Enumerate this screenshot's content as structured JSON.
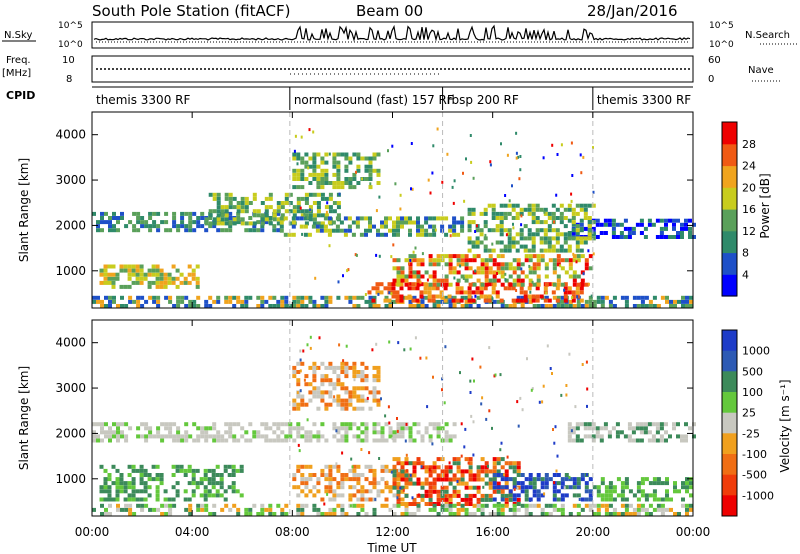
{
  "header": {
    "station": "South Pole Station (fitACF)",
    "beam": "Beam 00",
    "date": "28/Jan/2016"
  },
  "param_panels": {
    "nsky_label": "N.Sky",
    "nsky_ticks": [
      "10^5",
      "10^0"
    ],
    "nsearch_label": "N.Search",
    "nsearch_ticks": [
      "10^5",
      "10^0"
    ],
    "freq_label": "Freq.",
    "freq_unit": "[MHz]",
    "freq_ticks": [
      "10",
      "8"
    ],
    "nave_label": "Nave",
    "nave_ticks": [
      "60",
      "0"
    ],
    "cpid_label": "CPID"
  },
  "cpid_segments": [
    {
      "label": "themis 3300 RF",
      "start_hour": 0,
      "end_hour": 7.9
    },
    {
      "label": "normalsound (fast) 157 RF",
      "start_hour": 7.9,
      "end_hour": 14.0
    },
    {
      "label": "rbsp 200 RF",
      "start_hour": 14.0,
      "end_hour": 20.0
    },
    {
      "label": "themis 3300 RF",
      "start_hour": 20.0,
      "end_hour": 24.0
    }
  ],
  "x_axis": {
    "label": "Time UT",
    "ticks": [
      "00:00",
      "04:00",
      "08:00",
      "12:00",
      "16:00",
      "20:00",
      "00:00"
    ],
    "tick_hours": [
      0,
      4,
      8,
      12,
      16,
      20,
      24
    ]
  },
  "chart_data": [
    {
      "type": "heatmap",
      "name": "power",
      "ylabel": "Slant Range [km]",
      "yticks": [
        "1000",
        "2000",
        "3000",
        "4000"
      ],
      "ytick_values": [
        1000,
        2000,
        3000,
        4000
      ],
      "ylim": [
        180,
        4500
      ],
      "xlim_hours": [
        0,
        24
      ],
      "colorbar_label": "Power [dB]",
      "colorbar_ticks": [
        "4",
        "8",
        "12",
        "16",
        "20",
        "24",
        "28"
      ],
      "colorbar_colors": [
        "#0000ff",
        "#1e50c8",
        "#2f8a6a",
        "#5aa05a",
        "#c8cc1e",
        "#f0a41e",
        "#f05a14",
        "#ee0000"
      ],
      "bands": [
        {
          "h0": 0.0,
          "h1": 7.5,
          "r0": 1850,
          "r1": 2250,
          "cls": [
            1,
            2,
            3
          ]
        },
        {
          "h0": 4.5,
          "h1": 9.8,
          "r0": 2000,
          "r1": 2650,
          "cls": [
            2,
            3,
            4
          ]
        },
        {
          "h0": 8.0,
          "h1": 11.5,
          "r0": 2800,
          "r1": 3550,
          "cls": [
            2,
            3,
            4
          ]
        },
        {
          "h0": 7.5,
          "h1": 14.8,
          "r0": 1750,
          "r1": 2200,
          "cls": [
            1,
            2,
            3,
            4
          ]
        },
        {
          "h0": 0.3,
          "h1": 4.2,
          "r0": 600,
          "r1": 1100,
          "cls": [
            3,
            4,
            5
          ]
        },
        {
          "h0": 0.0,
          "h1": 24.0,
          "r0": 180,
          "r1": 450,
          "cls": [
            1,
            2,
            3,
            5
          ]
        },
        {
          "h0": 11.0,
          "h1": 19.5,
          "r0": 300,
          "r1": 700,
          "cls": [
            5,
            6,
            7
          ]
        },
        {
          "h0": 12.0,
          "h1": 20.0,
          "r0": 650,
          "r1": 1350,
          "cls": [
            3,
            4,
            5,
            6,
            7
          ]
        },
        {
          "h0": 19.0,
          "h1": 24.0,
          "r0": 1700,
          "r1": 2150,
          "cls": [
            0,
            1,
            2
          ]
        },
        {
          "h0": 15.0,
          "h1": 20.0,
          "r0": 1400,
          "r1": 2400,
          "cls": [
            2,
            3,
            4
          ]
        }
      ]
    },
    {
      "type": "heatmap",
      "name": "velocity",
      "ylabel": "Slant Range [km]",
      "yticks": [
        "1000",
        "2000",
        "3000",
        "4000"
      ],
      "ytick_values": [
        1000,
        2000,
        3000,
        4000
      ],
      "ylim": [
        180,
        4500
      ],
      "xlim_hours": [
        0,
        24
      ],
      "colorbar_label": "Velocity [m s⁻¹]",
      "colorbar_ticks": [
        "1000",
        "500",
        "100",
        "25",
        "-25",
        "-100",
        "-500",
        "-1000"
      ],
      "colorbar_colors": [
        "#1e3cc8",
        "#2d5ab4",
        "#3c8a5a",
        "#64c83c",
        "#c8c8c0",
        "#f0a01e",
        "#f06e14",
        "#f03c0a",
        "#ee0000"
      ],
      "bands": [
        {
          "h0": 0.0,
          "h1": 14.5,
          "r0": 1800,
          "r1": 2250,
          "cls": [
            4,
            4,
            4,
            3
          ]
        },
        {
          "h0": 8.0,
          "h1": 11.5,
          "r0": 2500,
          "r1": 3500,
          "cls": [
            4,
            5,
            6
          ]
        },
        {
          "h0": 0.3,
          "h1": 6.0,
          "r0": 500,
          "r1": 1300,
          "cls": [
            2,
            3,
            2
          ]
        },
        {
          "h0": 8.0,
          "h1": 12.5,
          "r0": 500,
          "r1": 1300,
          "cls": [
            5,
            6,
            4
          ]
        },
        {
          "h0": 12.0,
          "h1": 17.0,
          "r0": 400,
          "r1": 1400,
          "cls": [
            5,
            6,
            7,
            8,
            2
          ]
        },
        {
          "h0": 16.0,
          "h1": 20.0,
          "r0": 500,
          "r1": 1100,
          "cls": [
            0,
            1,
            0,
            2
          ]
        },
        {
          "h0": 19.0,
          "h1": 24.0,
          "r0": 1800,
          "r1": 2200,
          "cls": [
            4,
            4,
            2
          ]
        },
        {
          "h0": 0.0,
          "h1": 24.0,
          "r0": 180,
          "r1": 420,
          "cls": [
            3,
            2,
            5,
            4
          ]
        },
        {
          "h0": 20.0,
          "h1": 24.0,
          "r0": 500,
          "r1": 1000,
          "cls": [
            2,
            3
          ]
        }
      ]
    }
  ]
}
